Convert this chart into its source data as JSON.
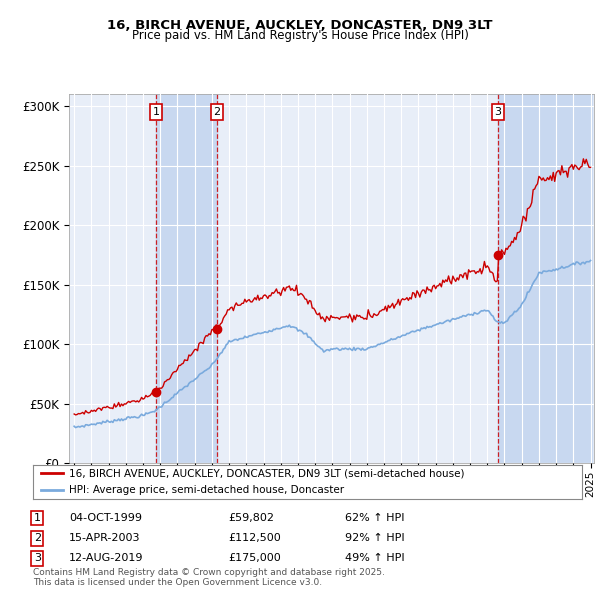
{
  "title": "16, BIRCH AVENUE, AUCKLEY, DONCASTER, DN9 3LT",
  "subtitle": "Price paid vs. HM Land Registry's House Price Index (HPI)",
  "legend_line1": "16, BIRCH AVENUE, AUCKLEY, DONCASTER, DN9 3LT (semi-detached house)",
  "legend_line2": "HPI: Average price, semi-detached house, Doncaster",
  "footer": "Contains HM Land Registry data © Crown copyright and database right 2025.\nThis data is licensed under the Open Government Licence v3.0.",
  "sales": [
    {
      "num": 1,
      "date": "04-OCT-1999",
      "price": 59802,
      "pct": "62% ↑ HPI",
      "year": 1999.75
    },
    {
      "num": 2,
      "date": "15-APR-2003",
      "price": 112500,
      "pct": "92% ↑ HPI",
      "year": 2003.29
    },
    {
      "num": 3,
      "date": "12-AUG-2019",
      "price": 175000,
      "pct": "49% ↑ HPI",
      "year": 2019.62
    }
  ],
  "ylim": [
    0,
    310000
  ],
  "yticks": [
    0,
    50000,
    100000,
    150000,
    200000,
    250000,
    300000
  ],
  "ytick_labels": [
    "£0",
    "£50K",
    "£100K",
    "£150K",
    "£200K",
    "£250K",
    "£300K"
  ],
  "background_color": "#ffffff",
  "plot_bg_color": "#e8eef8",
  "grid_color": "#ffffff",
  "red_color": "#cc0000",
  "blue_color": "#7aaadd",
  "shade_color": "#c8d8f0",
  "sale1_year": 1999.75,
  "sale2_year": 2003.29,
  "sale3_year": 2019.62
}
